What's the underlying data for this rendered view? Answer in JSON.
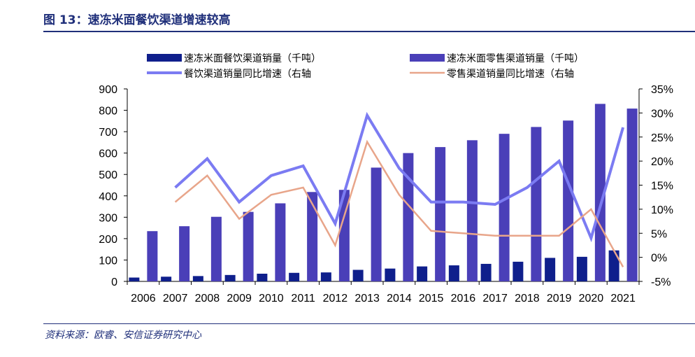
{
  "header": {
    "title": "图 13：速冻米面餐饮渠道增速较高"
  },
  "footer": {
    "source": "资料来源：欧睿、安信证券研究中心"
  },
  "colors": {
    "bar_catering": "#0f1f8c",
    "bar_retail": "#4a3fb8",
    "line_catering": "#7b7bf2",
    "line_retail": "#e8a58a",
    "brand": "#1f2f7a"
  },
  "chart_data": {
    "type": "bar",
    "categories": [
      "2006",
      "2007",
      "2008",
      "2009",
      "2010",
      "2011",
      "2012",
      "2013",
      "2014",
      "2015",
      "2016",
      "2017",
      "2018",
      "2019",
      "2020",
      "2021"
    ],
    "series": [
      {
        "name": "速冻米面餐饮渠道销量（千吨）",
        "kind": "bar",
        "axis": "left",
        "values": [
          18,
          22,
          25,
          30,
          36,
          40,
          42,
          54,
          60,
          70,
          75,
          82,
          92,
          110,
          115,
          145
        ]
      },
      {
        "name": "速冻米面零售渠道销量（千吨）",
        "kind": "bar",
        "axis": "left",
        "values": [
          235,
          258,
          302,
          325,
          365,
          418,
          428,
          532,
          600,
          628,
          660,
          690,
          722,
          752,
          830,
          808
        ]
      },
      {
        "name": "餐饮渠道销量同比增速（右轴",
        "kind": "line",
        "axis": "right",
        "values": [
          null,
          14.5,
          20.5,
          11.5,
          17.0,
          19.0,
          7.0,
          29.5,
          18.5,
          11.5,
          11.5,
          11.0,
          14.5,
          20.0,
          4.0,
          27.0
        ]
      },
      {
        "name": "零售渠道销量同比增速（右轴",
        "kind": "line",
        "axis": "right",
        "values": [
          null,
          11.5,
          17.0,
          8.0,
          13.0,
          14.5,
          2.5,
          24.0,
          13.0,
          5.5,
          5.0,
          4.5,
          4.5,
          4.5,
          10.0,
          -2.0
        ]
      }
    ],
    "y_left": {
      "min": 0,
      "max": 900,
      "ticks": [
        "0",
        "100",
        "200",
        "300",
        "400",
        "500",
        "600",
        "700",
        "800",
        "900"
      ]
    },
    "y_right": {
      "min": -5,
      "max": 35,
      "ticks": [
        "-5%",
        "0%",
        "5%",
        "10%",
        "15%",
        "20%",
        "25%",
        "30%",
        "35%"
      ]
    },
    "legend_position": "top",
    "grid": false
  }
}
